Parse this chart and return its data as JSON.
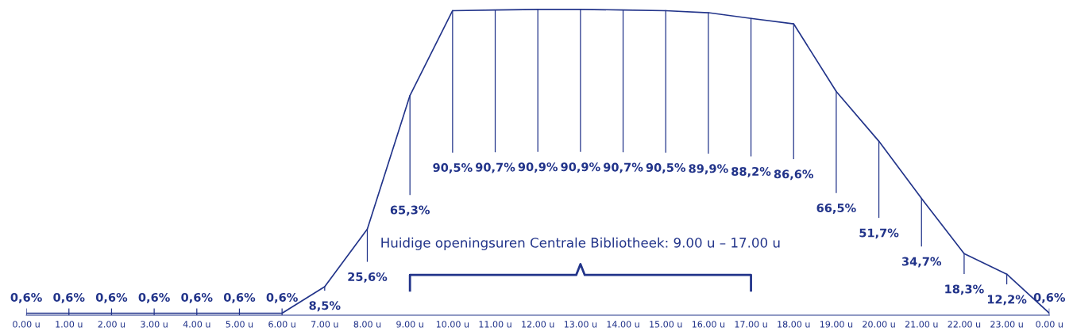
{
  "chart_data": {
    "type": "line",
    "color": "#22348a",
    "marker": "none",
    "grid": false,
    "legend": false,
    "tick_labels": "x",
    "categories": [
      "0.00 u",
      "1.00 u",
      "2.00 u",
      "3.00 u",
      "4.00 u",
      "5.00 u",
      "6.00 u",
      "7.00 u",
      "8.00 u",
      "9.00 u",
      "10.00 u",
      "11.00 u",
      "12.00 u",
      "13.00 u",
      "14.00 u",
      "15.00 u",
      "16.00 u",
      "17.00 u",
      "18.00 u",
      "19.00 u",
      "20.00 u",
      "21.00 u",
      "22.00 u",
      "23.00 u",
      "0.00 u"
    ],
    "values": [
      0.6,
      0.6,
      0.6,
      0.6,
      0.6,
      0.6,
      0.6,
      8.5,
      25.6,
      65.3,
      90.5,
      90.7,
      90.9,
      90.9,
      90.7,
      90.5,
      89.9,
      88.2,
      86.6,
      66.5,
      51.7,
      34.7,
      18.3,
      12.2,
      0.6
    ],
    "value_labels": [
      "0,6%",
      "0,6%",
      "0,6%",
      "0,6%",
      "0,6%",
      "0,6%",
      "0,6%",
      "8,5%",
      "25,6%",
      "65,3%",
      "90,5%",
      "90,7%",
      "90,9%",
      "90,9%",
      "90,7%",
      "90,5%",
      "89,9%",
      "88,2%",
      "86,6%",
      "66,5%",
      "51,7%",
      "34,7%",
      "18,3%",
      "12,2%",
      "0,6%"
    ],
    "annotations": [
      "Huidige openingsuren Centrale Bibliotheek: 9.00 u – 17.00 u"
    ]
  }
}
